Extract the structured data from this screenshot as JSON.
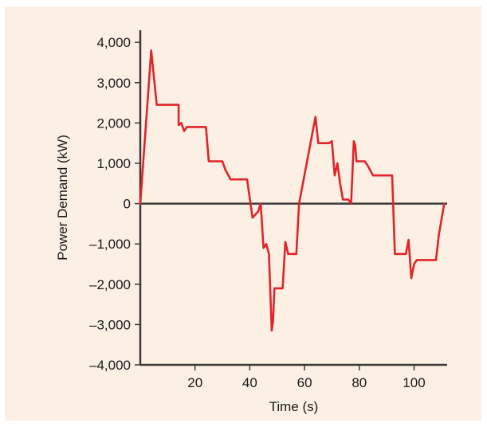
{
  "colors": {
    "background": "#fcefe3",
    "line": "#e0242b",
    "axis": "#3a3a3a"
  },
  "chart_data": {
    "type": "line",
    "title": "",
    "xlabel": "Time (s)",
    "ylabel": "Power Demand (kW)",
    "xlim": [
      0,
      115
    ],
    "ylim": [
      -4000,
      4300
    ],
    "xticks": [
      20,
      40,
      60,
      80,
      100
    ],
    "xtick_labels": [
      "20",
      "40",
      "60",
      "80",
      "100"
    ],
    "yticks": [
      4000,
      3000,
      2000,
      1000,
      0,
      -1000,
      -2000,
      -3000,
      -4000
    ],
    "ytick_labels": [
      "4,000",
      "3,000",
      "2,000",
      "1,000",
      "0",
      "–1,000",
      "–2,000",
      "–3,000",
      "–4,000"
    ],
    "grid": false,
    "zero_line": true,
    "series": [
      {
        "x": [
          0,
          4,
          6,
          14,
          14,
          15,
          16,
          17,
          18,
          24,
          25,
          30,
          31,
          33,
          37,
          39,
          41,
          43,
          44,
          45,
          46,
          47,
          48,
          48.5,
          49,
          52,
          53,
          54,
          55,
          57,
          58,
          64,
          65,
          69,
          70,
          71,
          72,
          73,
          74,
          76,
          77,
          78,
          78.5,
          79,
          80,
          82,
          83,
          85,
          86,
          87,
          89,
          92,
          93,
          97,
          98,
          99,
          100,
          101,
          102,
          108,
          109,
          111
        ],
        "y": [
          0,
          3800,
          2450,
          2450,
          1950,
          2000,
          1800,
          1900,
          1900,
          1900,
          1050,
          1050,
          850,
          600,
          600,
          600,
          -350,
          -200,
          0,
          -1100,
          -1000,
          -1250,
          -3150,
          -2900,
          -2100,
          -2100,
          -950,
          -1250,
          -1250,
          -1250,
          0,
          2150,
          1500,
          1500,
          1550,
          700,
          1000,
          500,
          100,
          100,
          0,
          1550,
          1450,
          1050,
          1050,
          1050,
          950,
          700,
          700,
          700,
          700,
          700,
          -1250,
          -1250,
          -900,
          -1850,
          -1500,
          -1400,
          -1400,
          -1400,
          -800,
          0
        ]
      }
    ]
  }
}
